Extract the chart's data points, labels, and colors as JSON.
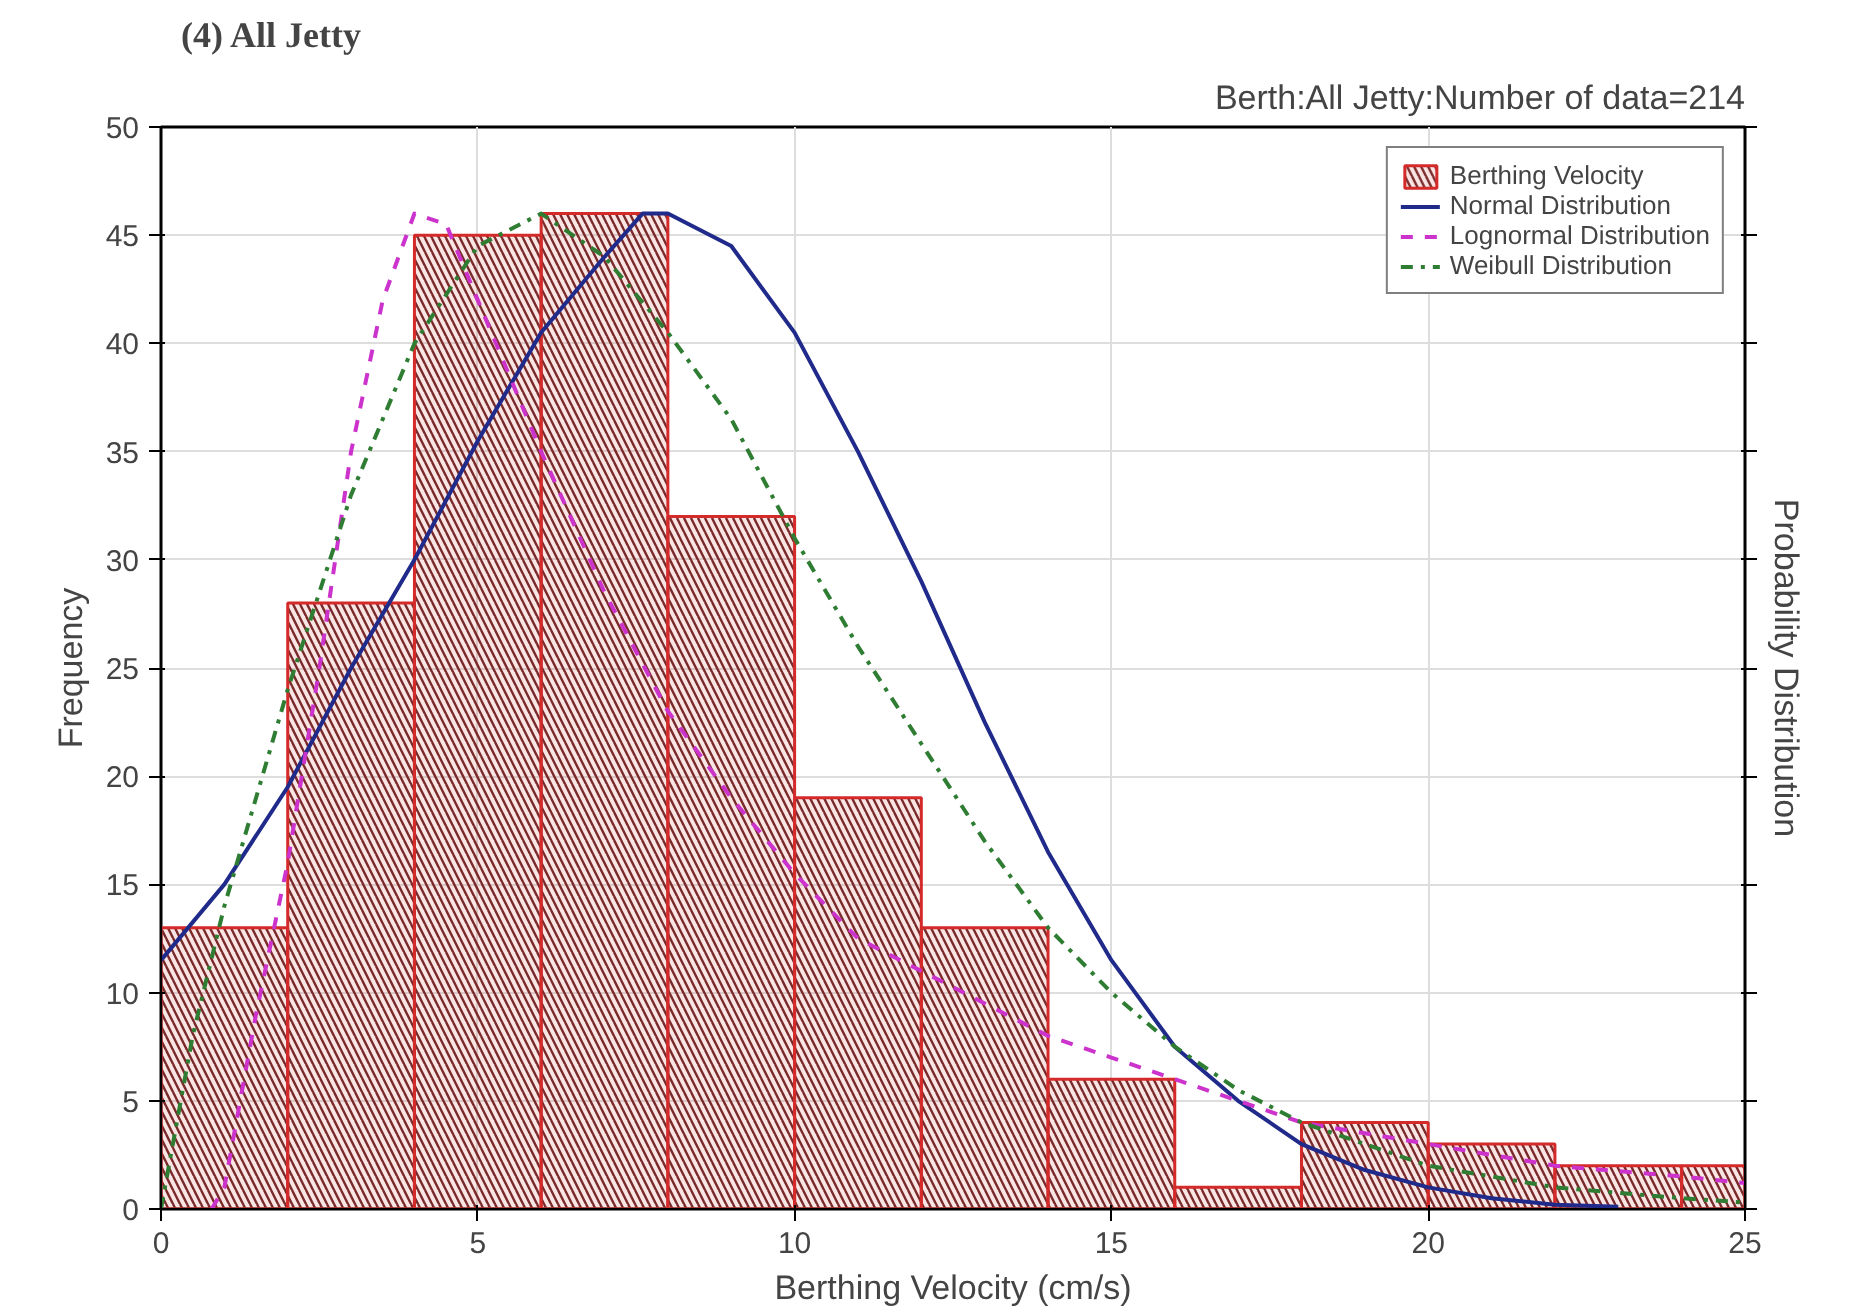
{
  "chart_data": {
    "type": "histogram",
    "title": "(4) All Jetty",
    "subtitle": "Berth:All Jetty:Number of data=214",
    "xlabel": "Berthing Velocity (cm/s)",
    "ylabel": "Frequency",
    "y2label": "Probability Distribution",
    "bins": [
      0,
      2,
      4,
      6,
      8,
      10,
      12,
      14,
      16,
      18,
      20,
      22,
      24,
      25
    ],
    "series": [
      {
        "name": "Berthing Velocity",
        "color": "#d42a2a",
        "values": [
          13,
          28,
          45,
          46,
          32,
          19,
          13,
          6,
          1,
          4,
          3,
          2,
          2
        ]
      },
      {
        "name": "Normal Distribution",
        "type": "line",
        "line_style": "solid",
        "color": "#1f2a8a",
        "x": [
          0,
          1,
          2,
          3,
          4,
          5,
          6,
          7,
          7.6,
          8,
          9,
          10,
          11,
          12,
          13,
          14,
          15,
          16,
          17,
          18,
          19,
          20,
          21,
          22,
          23
        ],
        "values": [
          11.5,
          15,
          19.5,
          25,
          30,
          35.5,
          40.5,
          44,
          46,
          46,
          44.5,
          40.5,
          35,
          29,
          22.5,
          16.5,
          11.5,
          7.5,
          5,
          3,
          1.8,
          1,
          0.5,
          0.2,
          0.1
        ]
      },
      {
        "name": "Lognormal Distribution",
        "type": "line",
        "line_style": "dashed",
        "color": "#cc33cc",
        "x": [
          0.8,
          1,
          1.5,
          2,
          2.5,
          3,
          3.5,
          4,
          4.5,
          5,
          6,
          7,
          8,
          9,
          10,
          11,
          12,
          13,
          14,
          15,
          16,
          17,
          18,
          19,
          20,
          22,
          24,
          25
        ],
        "values": [
          0,
          1,
          9,
          16,
          25,
          35,
          42,
          46,
          45.5,
          42,
          35,
          28.5,
          23,
          19,
          15.5,
          12.5,
          11,
          9.5,
          8,
          7,
          6,
          5,
          4,
          3.5,
          3,
          2,
          1.5,
          1.2
        ]
      },
      {
        "name": "Weibull Distribution",
        "type": "line",
        "line_style": "dashdot",
        "color": "#2e7d32",
        "x": [
          0,
          0.5,
          1,
          2,
          3,
          4,
          5,
          6,
          7,
          8,
          9,
          10,
          11,
          12,
          13,
          14,
          15,
          16,
          17,
          18,
          19,
          20,
          22,
          24,
          25
        ],
        "values": [
          0,
          8,
          14,
          24,
          33,
          40,
          44.5,
          46,
          44,
          40.5,
          36.5,
          31,
          26,
          21.5,
          17,
          13,
          10,
          7.5,
          5.5,
          4,
          3,
          2,
          1,
          0.5,
          0.3
        ]
      }
    ],
    "xlim": [
      0,
      25
    ],
    "ylim": [
      0,
      50
    ],
    "xticks": [
      0,
      5,
      10,
      15,
      20,
      25
    ],
    "yticks": [
      0,
      5,
      10,
      15,
      20,
      25,
      30,
      35,
      40,
      45,
      50
    ],
    "grid": true,
    "legend": "top right"
  }
}
